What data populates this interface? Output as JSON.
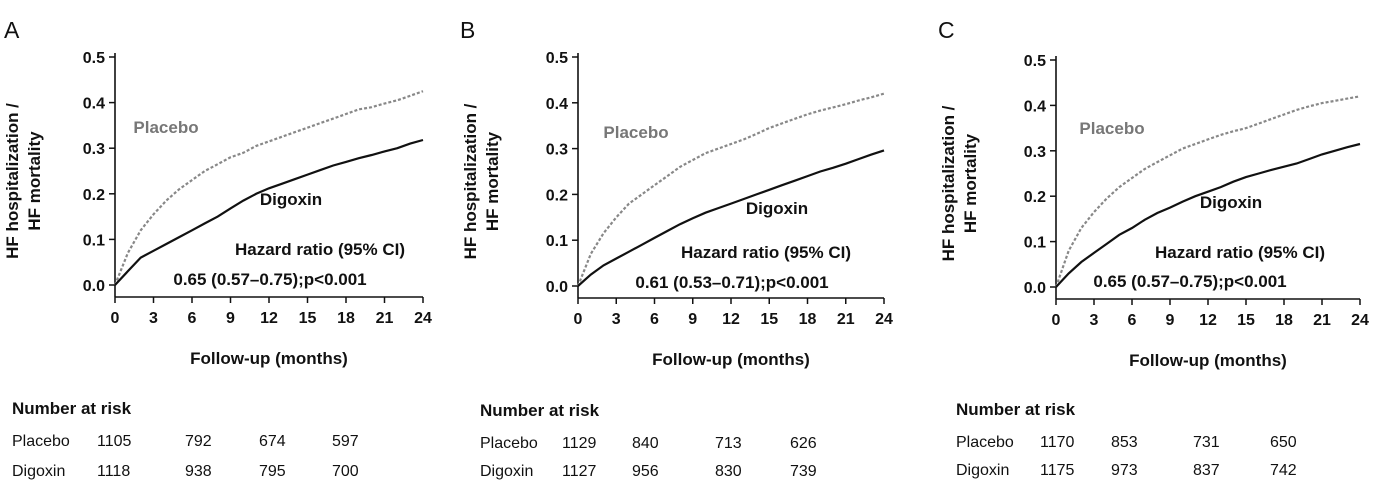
{
  "chart_data": [
    {
      "type": "line",
      "panel_label": "A",
      "ylabel_line1": "HF hospitalization /",
      "ylabel_line2": "HF mortality",
      "xlabel": "Follow-up (months)",
      "xlim": [
        0,
        24
      ],
      "ylim": [
        0,
        0.5
      ],
      "xticks": [
        0,
        3,
        6,
        9,
        12,
        15,
        18,
        21,
        24
      ],
      "yticks": [
        "0.0",
        "0.1",
        "0.2",
        "0.3",
        "0.4",
        "0.5"
      ],
      "grid": false,
      "series": [
        {
          "name": "Placebo",
          "style": "dashed",
          "color": "#888888",
          "x": [
            0,
            1,
            2,
            3,
            4,
            5,
            6,
            7,
            8,
            9,
            10,
            11,
            12,
            13,
            14,
            15,
            16,
            17,
            18,
            19,
            20,
            21,
            22,
            23,
            24
          ],
          "y": [
            0,
            0.07,
            0.12,
            0.155,
            0.185,
            0.21,
            0.23,
            0.25,
            0.265,
            0.28,
            0.29,
            0.305,
            0.315,
            0.325,
            0.335,
            0.345,
            0.355,
            0.365,
            0.375,
            0.385,
            0.39,
            0.398,
            0.405,
            0.415,
            0.425
          ]
        },
        {
          "name": "Digoxin",
          "style": "solid",
          "color": "#111111",
          "x": [
            0,
            1,
            2,
            3,
            4,
            5,
            6,
            7,
            8,
            9,
            10,
            11,
            12,
            13,
            14,
            15,
            16,
            17,
            18,
            19,
            20,
            21,
            22,
            23,
            24
          ],
          "y": [
            0,
            0.03,
            0.06,
            0.075,
            0.09,
            0.105,
            0.12,
            0.135,
            0.15,
            0.168,
            0.185,
            0.2,
            0.212,
            0.222,
            0.232,
            0.242,
            0.252,
            0.262,
            0.27,
            0.278,
            0.285,
            0.293,
            0.3,
            0.31,
            0.318
          ]
        }
      ],
      "annotations": {
        "placebo_label": "Placebo",
        "digoxin_label": "Digoxin",
        "hr_title": "Hazard ratio (95% CI)",
        "hr_value": "0.65 (0.57–0.75);p<0.001"
      },
      "risk_table": {
        "title": "Number at risk",
        "rows": [
          {
            "label": "Placebo",
            "values": [
              "1105",
              "792",
              "674",
              "597"
            ]
          },
          {
            "label": "Digoxin",
            "values": [
              "1118",
              "938",
              "795",
              "700"
            ]
          }
        ]
      }
    },
    {
      "type": "line",
      "panel_label": "B",
      "ylabel_line1": "HF hospitalization /",
      "ylabel_line2": "HF mortality",
      "xlabel": "Follow-up (months)",
      "xlim": [
        0,
        24
      ],
      "ylim": [
        0,
        0.5
      ],
      "xticks": [
        0,
        3,
        6,
        9,
        12,
        15,
        18,
        21,
        24
      ],
      "yticks": [
        "0.0",
        "0.1",
        "0.2",
        "0.3",
        "0.4",
        "0.5"
      ],
      "grid": false,
      "series": [
        {
          "name": "Placebo",
          "style": "dashed",
          "color": "#888888",
          "x": [
            0,
            1,
            2,
            3,
            4,
            5,
            6,
            7,
            8,
            9,
            10,
            11,
            12,
            13,
            14,
            15,
            16,
            17,
            18,
            19,
            20,
            21,
            22,
            23,
            24
          ],
          "y": [
            0,
            0.07,
            0.115,
            0.15,
            0.18,
            0.2,
            0.22,
            0.24,
            0.26,
            0.275,
            0.29,
            0.3,
            0.31,
            0.32,
            0.332,
            0.345,
            0.355,
            0.365,
            0.375,
            0.383,
            0.39,
            0.397,
            0.405,
            0.412,
            0.42
          ]
        },
        {
          "name": "Digoxin",
          "style": "solid",
          "color": "#111111",
          "x": [
            0,
            1,
            2,
            3,
            4,
            5,
            6,
            7,
            8,
            9,
            10,
            11,
            12,
            13,
            14,
            15,
            16,
            17,
            18,
            19,
            20,
            21,
            22,
            23,
            24
          ],
          "y": [
            0,
            0.025,
            0.045,
            0.06,
            0.075,
            0.09,
            0.105,
            0.12,
            0.135,
            0.148,
            0.16,
            0.17,
            0.18,
            0.19,
            0.2,
            0.21,
            0.22,
            0.23,
            0.24,
            0.25,
            0.258,
            0.267,
            0.277,
            0.287,
            0.296
          ]
        }
      ],
      "annotations": {
        "placebo_label": "Placebo",
        "digoxin_label": "Digoxin",
        "hr_title": "Hazard ratio (95% CI)",
        "hr_value": "0.61 (0.53–0.71);p<0.001"
      },
      "risk_table": {
        "title": "Number at risk",
        "rows": [
          {
            "label": "Placebo",
            "values": [
              "1129",
              "840",
              "713",
              "626"
            ]
          },
          {
            "label": "Digoxin",
            "values": [
              "1127",
              "956",
              "830",
              "739"
            ]
          }
        ]
      }
    },
    {
      "type": "line",
      "panel_label": "C",
      "ylabel_line1": "HF hospitalization /",
      "ylabel_line2": "HF mortality",
      "xlabel": "Follow-up (months)",
      "xlim": [
        0,
        24
      ],
      "ylim": [
        0,
        0.5
      ],
      "xticks": [
        0,
        3,
        6,
        9,
        12,
        15,
        18,
        21,
        24
      ],
      "yticks": [
        "0.0",
        "0.1",
        "0.2",
        "0.3",
        "0.4",
        "0.5"
      ],
      "grid": false,
      "series": [
        {
          "name": "Placebo",
          "style": "dashed",
          "color": "#888888",
          "x": [
            0,
            1,
            2,
            3,
            4,
            5,
            6,
            7,
            8,
            9,
            10,
            11,
            12,
            13,
            14,
            15,
            16,
            17,
            18,
            19,
            20,
            21,
            22,
            23,
            24
          ],
          "y": [
            0,
            0.08,
            0.13,
            0.165,
            0.195,
            0.22,
            0.24,
            0.26,
            0.275,
            0.29,
            0.305,
            0.315,
            0.325,
            0.335,
            0.343,
            0.35,
            0.36,
            0.37,
            0.38,
            0.39,
            0.398,
            0.405,
            0.41,
            0.415,
            0.42
          ]
        },
        {
          "name": "Digoxin",
          "style": "solid",
          "color": "#111111",
          "x": [
            0,
            1,
            2,
            3,
            4,
            5,
            6,
            7,
            8,
            9,
            10,
            11,
            12,
            13,
            14,
            15,
            16,
            17,
            18,
            19,
            20,
            21,
            22,
            23,
            24
          ],
          "y": [
            0,
            0.03,
            0.055,
            0.075,
            0.095,
            0.115,
            0.13,
            0.148,
            0.163,
            0.175,
            0.188,
            0.2,
            0.21,
            0.22,
            0.232,
            0.242,
            0.25,
            0.258,
            0.265,
            0.272,
            0.282,
            0.292,
            0.3,
            0.308,
            0.315
          ]
        }
      ],
      "annotations": {
        "placebo_label": "Placebo",
        "digoxin_label": "Digoxin",
        "hr_title": "Hazard ratio (95% CI)",
        "hr_value": "0.65 (0.57–0.75);p<0.001"
      },
      "risk_table": {
        "title": "Number at risk",
        "rows": [
          {
            "label": "Placebo",
            "values": [
              "1170",
              "853",
              "731",
              "650"
            ]
          },
          {
            "label": "Digoxin",
            "values": [
              "1175",
              "973",
              "837",
              "742"
            ]
          }
        ]
      }
    }
  ]
}
